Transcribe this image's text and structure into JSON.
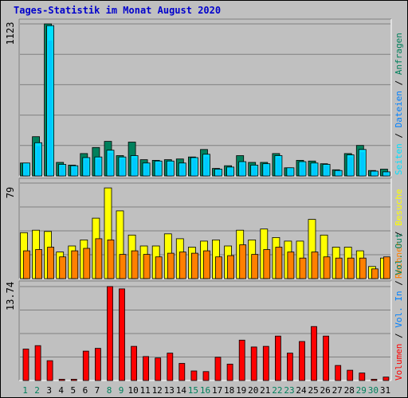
{
  "title": "Tages-Statistik im Monat August 2020",
  "colors": {
    "bg": "#c0c0c0",
    "plot_bg": "#c0c0c0",
    "grid": "#808080",
    "hits": "#00805c",
    "files": "#0080ff",
    "pages": "#00e0ff",
    "visits": "#ffff00",
    "sites": "#ff8000",
    "kbytes": "#ff0000",
    "day_weekday": "#000000",
    "day_weekend": "#00805c"
  },
  "chart_data": [
    {
      "type": "bar",
      "panel": "top",
      "y_label": "1123",
      "series_labels": [
        {
          "key": "pages",
          "label": "Seiten",
          "color": "#00e0ff"
        },
        {
          "key": "files",
          "label": "Dateien",
          "color": "#0080ff"
        },
        {
          "key": "hits",
          "label": "Anfragen",
          "color": "#00805c"
        }
      ],
      "ylim": [
        0,
        1123
      ],
      "categories": [
        "1",
        "2",
        "3",
        "4",
        "5",
        "6",
        "7",
        "8",
        "9",
        "10",
        "11",
        "12",
        "13",
        "14",
        "15",
        "16",
        "17",
        "18",
        "19",
        "20",
        "21",
        "22",
        "23",
        "24",
        "25",
        "26",
        "27",
        "28",
        "29",
        "30",
        "31"
      ],
      "series": [
        {
          "name": "Anfragen",
          "key": "hits",
          "values": [
            95,
            290,
            1123,
            100,
            80,
            165,
            210,
            255,
            150,
            250,
            120,
            115,
            120,
            125,
            140,
            195,
            55,
            75,
            150,
            100,
            100,
            165,
            60,
            115,
            110,
            90,
            45,
            165,
            225,
            40,
            50
          ]
        },
        {
          "name": "Dateien",
          "key": "files",
          "values": [
            95,
            245,
            1110,
            85,
            75,
            135,
            140,
            190,
            140,
            150,
            95,
            110,
            110,
            95,
            135,
            160,
            50,
            65,
            105,
            80,
            90,
            150,
            60,
            105,
            95,
            85,
            40,
            155,
            195,
            35,
            30
          ]
        },
        {
          "name": "Seiten",
          "key": "pages",
          "values": [
            95,
            245,
            1110,
            85,
            75,
            135,
            140,
            190,
            140,
            150,
            95,
            110,
            110,
            95,
            135,
            160,
            50,
            65,
            105,
            80,
            90,
            150,
            60,
            105,
            95,
            85,
            40,
            155,
            195,
            35,
            30
          ]
        }
      ]
    },
    {
      "type": "bar",
      "panel": "middle",
      "y_label": "79",
      "series_labels": [
        {
          "key": "sites",
          "label": "Rechner",
          "color": "#ff8000"
        },
        {
          "key": "visits",
          "label": "Besuche",
          "color": "#ffff00"
        }
      ],
      "ylim": [
        0,
        79
      ],
      "categories": [
        "1",
        "2",
        "3",
        "4",
        "5",
        "6",
        "7",
        "8",
        "9",
        "10",
        "11",
        "12",
        "13",
        "14",
        "15",
        "16",
        "17",
        "18",
        "19",
        "20",
        "21",
        "22",
        "23",
        "24",
        "25",
        "26",
        "27",
        "28",
        "29",
        "30",
        "31"
      ],
      "series": [
        {
          "name": "Besuche",
          "key": "visits",
          "values": [
            38,
            40,
            39,
            22,
            27,
            32,
            50,
            75,
            56,
            36,
            27,
            27,
            37,
            33,
            26,
            31,
            32,
            27,
            40,
            32,
            41,
            34,
            31,
            31,
            49,
            36,
            26,
            26,
            23,
            10,
            17
          ]
        },
        {
          "name": "Rechner",
          "key": "sites",
          "values": [
            23,
            24,
            26,
            18,
            23,
            25,
            33,
            32,
            20,
            23,
            20,
            18,
            21,
            22,
            21,
            23,
            18,
            19,
            28,
            20,
            24,
            26,
            22,
            17,
            22,
            18,
            17,
            17,
            17,
            8,
            18
          ]
        }
      ]
    },
    {
      "type": "bar",
      "panel": "bottom",
      "y_label": "13.74",
      "series_labels": [
        {
          "key": "kbytes",
          "label": "Volumen",
          "color": "#ff0000"
        },
        {
          "key": "in",
          "label": "Vol. In",
          "color": "#0080ff"
        },
        {
          "key": "out",
          "label": "Vol. Out",
          "color": "#00805c"
        }
      ],
      "ylim": [
        0,
        13.74
      ],
      "categories": [
        "1",
        "2",
        "3",
        "4",
        "5",
        "6",
        "7",
        "8",
        "9",
        "10",
        "11",
        "12",
        "13",
        "14",
        "15",
        "16",
        "17",
        "18",
        "19",
        "20",
        "21",
        "22",
        "23",
        "24",
        "25",
        "26",
        "27",
        "28",
        "29",
        "30",
        "31"
      ],
      "series": [
        {
          "name": "Volumen",
          "key": "kbytes",
          "values": [
            4.6,
            5.1,
            2.9,
            0.1,
            0.1,
            4.3,
            4.7,
            13.74,
            13.4,
            5.0,
            3.5,
            3.3,
            4.0,
            2.5,
            1.4,
            1.3,
            3.4,
            2.4,
            5.9,
            4.9,
            5.0,
            6.5,
            4.0,
            5.7,
            7.9,
            6.5,
            2.2,
            1.5,
            1.1,
            0.15,
            0.5
          ]
        }
      ],
      "day_labels_weekend": [
        "1",
        "2",
        "8",
        "9",
        "15",
        "16",
        "22",
        "23",
        "29",
        "30"
      ]
    }
  ]
}
